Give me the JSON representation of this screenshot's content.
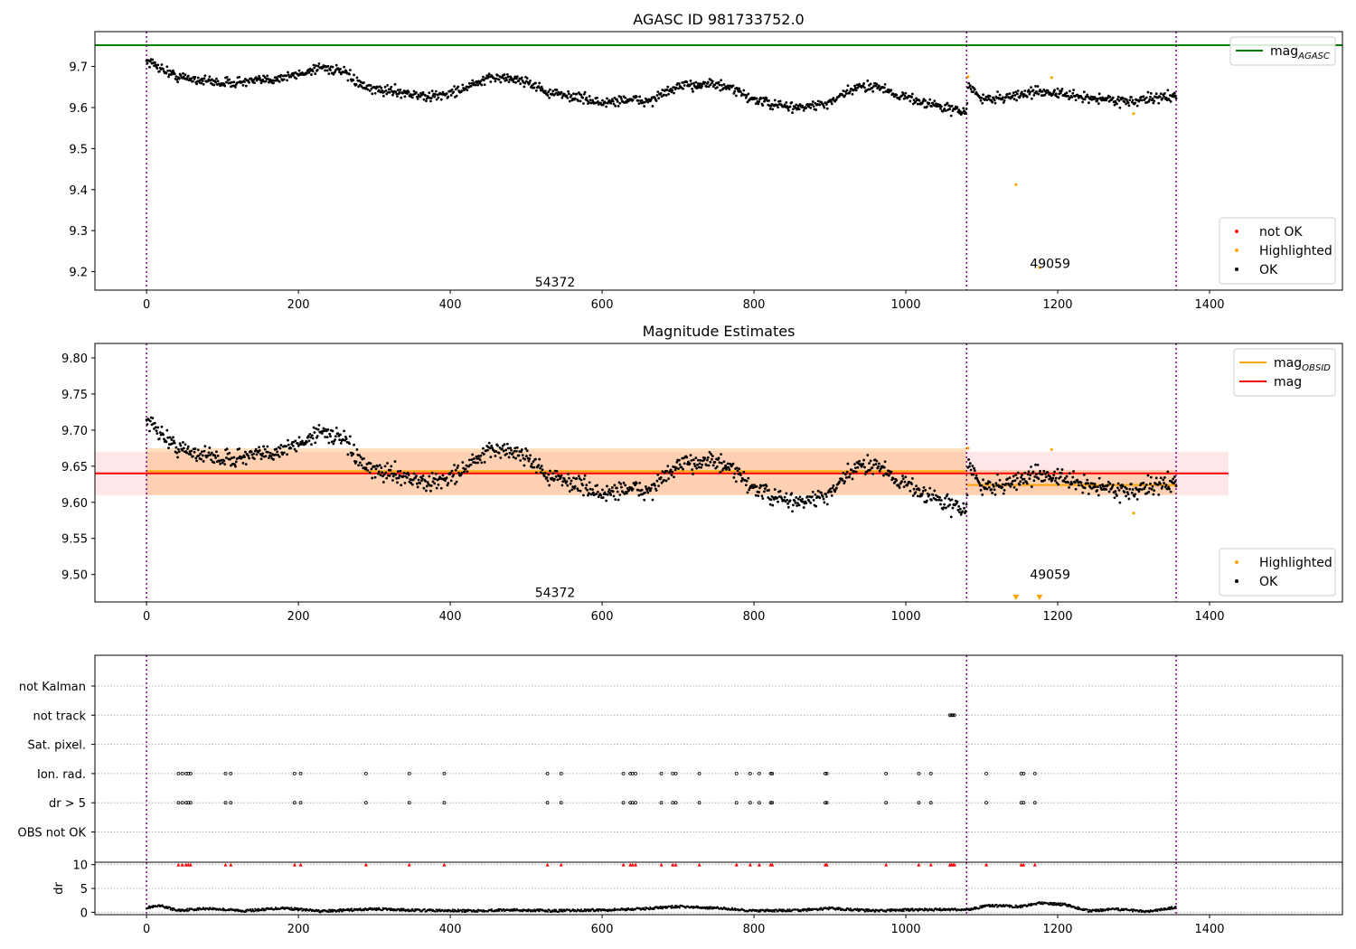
{
  "chart_data": [
    {
      "type": "scatter",
      "title": "AGASC ID 981733752.0",
      "xlabel": "",
      "ylabel": "",
      "xlim": [
        -68,
        1575
      ],
      "ylim": [
        9.155,
        9.785
      ],
      "xticks": [
        0,
        200,
        400,
        600,
        800,
        1000,
        1200,
        1400
      ],
      "yticks": [
        9.2,
        9.3,
        9.4,
        9.5,
        9.6,
        9.7
      ],
      "vlines": [
        0,
        1080,
        1356
      ],
      "hline": {
        "name": "mag_AGASC",
        "value": 9.752,
        "color": "#008000"
      },
      "annotations": [
        {
          "text": "54372",
          "x": 538,
          "y": 9.175
        },
        {
          "text": "49059",
          "x": 1190,
          "y": 9.22
        }
      ],
      "legends": [
        {
          "position": "top-right",
          "entries": [
            {
              "label": "mag",
              "sub": "AGASC",
              "kind": "line",
              "color": "#008000"
            }
          ]
        },
        {
          "position": "bottom-right",
          "entries": [
            {
              "label": "not OK",
              "kind": "dot",
              "color": "#ff0000"
            },
            {
              "label": "Highlighted",
              "kind": "dot",
              "color": "#ffa500"
            },
            {
              "label": "OK",
              "kind": "dot",
              "color": "#000000"
            }
          ]
        }
      ],
      "series": [
        {
          "name": "OK",
          "color": "#000000",
          "trend": [
            [
              0,
              9.715
            ],
            [
              40,
              9.675
            ],
            [
              100,
              9.66
            ],
            [
              150,
              9.665
            ],
            [
              200,
              9.68
            ],
            [
              230,
              9.7
            ],
            [
              260,
              9.685
            ],
            [
              290,
              9.645
            ],
            [
              330,
              9.64
            ],
            [
              370,
              9.625
            ],
            [
              400,
              9.635
            ],
            [
              430,
              9.655
            ],
            [
              460,
              9.675
            ],
            [
              500,
              9.665
            ],
            [
              530,
              9.635
            ],
            [
              570,
              9.625
            ],
            [
              600,
              9.61
            ],
            [
              630,
              9.62
            ],
            [
              660,
              9.615
            ],
            [
              700,
              9.65
            ],
            [
              740,
              9.66
            ],
            [
              770,
              9.645
            ],
            [
              800,
              9.62
            ],
            [
              830,
              9.605
            ],
            [
              860,
              9.6
            ],
            [
              900,
              9.61
            ],
            [
              930,
              9.645
            ],
            [
              960,
              9.655
            ],
            [
              990,
              9.63
            ],
            [
              1030,
              9.61
            ],
            [
              1060,
              9.595
            ],
            [
              1080,
              9.59
            ],
            [
              1082,
              9.655
            ],
            [
              1100,
              9.62
            ],
            [
              1130,
              9.625
            ],
            [
              1180,
              9.64
            ],
            [
              1230,
              9.625
            ],
            [
              1300,
              9.615
            ],
            [
              1356,
              9.63
            ]
          ],
          "x_range": [
            0,
            1356
          ],
          "count": 1356,
          "noise": 0.012
        },
        {
          "name": "Highlighted",
          "color": "#ffa500",
          "points": [
            [
              1082,
              9.675
            ],
            [
              1145,
              9.412
            ],
            [
              1176,
              9.21
            ],
            [
              1192,
              9.673
            ],
            [
              1300,
              9.585
            ]
          ]
        }
      ]
    },
    {
      "type": "scatter",
      "title": "Magnitude Estimates",
      "xlabel": "",
      "ylabel": "",
      "xlim": [
        -68,
        1575
      ],
      "ylim": [
        9.462,
        9.82
      ],
      "xticks": [
        0,
        200,
        400,
        600,
        800,
        1000,
        1200,
        1400
      ],
      "yticks": [
        9.5,
        9.55,
        9.6,
        9.65,
        9.7,
        9.75,
        9.8
      ],
      "vlines": [
        0,
        1080,
        1356
      ],
      "bands": [
        {
          "name": "mag",
          "x": [
            -68,
            1425
          ],
          "y": [
            9.61,
            9.67
          ],
          "color": "#ffb6c1"
        },
        {
          "name": "mag_OBSID 1",
          "x": [
            0,
            1080
          ],
          "y": [
            9.61,
            9.675
          ],
          "color": "#ffa64d"
        },
        {
          "name": "mag_OBSID 2",
          "x": [
            1080,
            1356
          ],
          "y": [
            9.61,
            9.645
          ],
          "color": "#ffa64d"
        }
      ],
      "lines": [
        {
          "name": "mag",
          "color": "#ff0000",
          "segments": [
            [
              [
                -68,
                9.64
              ],
              [
                1425,
                9.64
              ]
            ]
          ]
        },
        {
          "name": "mag_OBSID",
          "color": "#ffa500",
          "segments": [
            [
              [
                0,
                9.643
              ],
              [
                1080,
                9.643
              ]
            ],
            [
              [
                1080,
                9.624
              ],
              [
                1356,
                9.624
              ]
            ]
          ]
        }
      ],
      "annotations": [
        {
          "text": "54372",
          "x": 538,
          "y": 9.475
        },
        {
          "text": "49059",
          "x": 1190,
          "y": 9.5
        }
      ],
      "legends": [
        {
          "position": "top-right",
          "entries": [
            {
              "label": "mag",
              "sub": "OBSID",
              "kind": "line",
              "color": "#ffa500"
            },
            {
              "label": "mag",
              "sub": "",
              "kind": "line",
              "color": "#ff0000"
            }
          ]
        },
        {
          "position": "bottom-right",
          "entries": [
            {
              "label": "Highlighted",
              "kind": "dot",
              "color": "#ffa500"
            },
            {
              "label": "OK",
              "kind": "dot",
              "color": "#000000"
            }
          ]
        }
      ],
      "series": [
        {
          "name": "OK",
          "color": "#000000",
          "same_as_panel": 0
        },
        {
          "name": "Highlighted",
          "color": "#ffa500",
          "points": [
            [
              1082,
              9.675
            ],
            [
              1192,
              9.673
            ],
            [
              1300,
              9.585
            ]
          ],
          "off_scale_markers": [
            1145,
            1176
          ]
        }
      ]
    },
    {
      "type": "scatter",
      "title": "",
      "xlabel": "",
      "ylabel": "",
      "xlim": [
        -68,
        1575
      ],
      "xticks": [
        0,
        200,
        400,
        600,
        800,
        1000,
        1200,
        1400
      ],
      "vlines": [
        0,
        1080,
        1356
      ],
      "categories": [
        "not Kalman",
        "not track",
        "Sat. pixel.",
        "Ion. rad.",
        "dr > 5",
        "OBS not OK"
      ],
      "flag_points": {
        "not track": [
          1058,
          1060,
          1062,
          1064
        ],
        "Ion. rad.": [
          42,
          47,
          52,
          55,
          58,
          104,
          111,
          195,
          203,
          289,
          346,
          392,
          528,
          546,
          628,
          637,
          640,
          644,
          678,
          693,
          697,
          728,
          777,
          795,
          807,
          822,
          824,
          894,
          896,
          974,
          1017,
          1033,
          1106,
          1152,
          1155,
          1170
        ],
        "dr > 5": [
          42,
          47,
          52,
          55,
          58,
          104,
          111,
          195,
          203,
          289,
          346,
          392,
          528,
          546,
          628,
          637,
          640,
          644,
          678,
          693,
          697,
          728,
          777,
          795,
          807,
          822,
          824,
          894,
          896,
          974,
          1017,
          1033,
          1106,
          1152,
          1155,
          1170
        ]
      },
      "dr_panel": {
        "ylabel": "dr",
        "ylim": [
          -0.5,
          10.5
        ],
        "yticks": [
          0,
          5,
          10
        ],
        "clip_value": 10,
        "clipped_x": [
          42,
          47,
          52,
          55,
          58,
          104,
          111,
          195,
          203,
          289,
          346,
          392,
          528,
          546,
          628,
          637,
          640,
          644,
          678,
          693,
          697,
          728,
          777,
          795,
          807,
          822,
          824,
          894,
          896,
          974,
          1017,
          1033,
          1058,
          1060,
          1062,
          1064,
          1106,
          1152,
          1155,
          1170
        ],
        "baseline": [
          [
            0,
            1.0
          ],
          [
            20,
            1.3
          ],
          [
            40,
            0.4
          ],
          [
            80,
            0.8
          ],
          [
            130,
            0.3
          ],
          [
            180,
            0.9
          ],
          [
            230,
            0.2
          ],
          [
            300,
            0.7
          ],
          [
            360,
            0.4
          ],
          [
            420,
            0.3
          ],
          [
            480,
            0.5
          ],
          [
            540,
            0.3
          ],
          [
            600,
            0.5
          ],
          [
            650,
            0.7
          ],
          [
            700,
            1.2
          ],
          [
            760,
            0.8
          ],
          [
            800,
            0.3
          ],
          [
            860,
            0.4
          ],
          [
            900,
            0.8
          ],
          [
            960,
            0.3
          ],
          [
            1000,
            0.5
          ],
          [
            1060,
            0.6
          ],
          [
            1080,
            0.5
          ],
          [
            1110,
            1.4
          ],
          [
            1150,
            1.2
          ],
          [
            1175,
            1.9
          ],
          [
            1210,
            1.6
          ],
          [
            1240,
            0.3
          ],
          [
            1280,
            0.6
          ],
          [
            1320,
            0.2
          ],
          [
            1356,
            1.0
          ]
        ]
      }
    }
  ]
}
